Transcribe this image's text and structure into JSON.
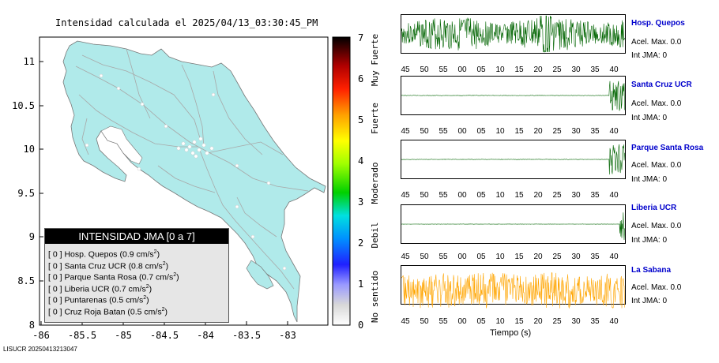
{
  "map": {
    "title": "Intensidad calculada el 2025/04/13_03:30:45_PM",
    "y_ticks": [
      "11",
      "10.5",
      "10",
      "9.5",
      "9",
      "8.5",
      "8"
    ],
    "x_ticks": [
      "-86",
      "-85.5",
      "-85",
      "-84.5",
      "-84",
      "-83.5",
      "-83"
    ],
    "land_color": "#b0eaea"
  },
  "colorbar": {
    "ticks": [
      "0",
      "1",
      "2",
      "3",
      "4",
      "5",
      "6",
      "7"
    ],
    "categories": [
      "No sentido",
      "Debil",
      "Moderado",
      "Fuerte",
      "Muy Fuerte"
    ]
  },
  "legend": {
    "title": "INTENSIDAD JMA [0 a 7]",
    "items": [
      {
        "level": "[ 0 ]",
        "name": "Hosp. Quepos",
        "value": "(0.9 cm/s",
        "unit_sup": "2",
        "close": ")"
      },
      {
        "level": "[ 0 ]",
        "name": "Santa Cruz UCR",
        "value": "(0.8 cm/s",
        "unit_sup": "2",
        "close": ")"
      },
      {
        "level": "[ 0 ]",
        "name": "Parque Santa Rosa",
        "value": "(0.7 cm/s",
        "unit_sup": "2",
        "close": ")"
      },
      {
        "level": "[ 0 ]",
        "name": "Liberia UCR",
        "value": "(0.7 cm/s",
        "unit_sup": "2",
        "close": ")"
      },
      {
        "level": "[ 0 ]",
        "name": "Puntarenas",
        "value": "(0.5 cm/s",
        "unit_sup": "2",
        "close": ")"
      },
      {
        "level": "[ 0 ]",
        "name": "Cruz Roja Batan",
        "value": "(0.5 cm/s",
        "unit_sup": "2",
        "close": ")"
      }
    ]
  },
  "footer": "LISUCR 20250413213047",
  "stations": [
    {
      "name": "Hosp. Quepos",
      "acc": "Acel. Max. 0.0",
      "jma": "Int JMA: 0",
      "color": "#006400",
      "type": "full"
    },
    {
      "name": "Santa Cruz UCR",
      "acc": "Acel. Max. 0.0",
      "jma": "Int JMA: 0",
      "color": "#006400",
      "type": "end"
    },
    {
      "name": "Parque Santa Rosa",
      "acc": "Acel. Max. 0.0",
      "jma": "Int JMA: 0",
      "color": "#006400",
      "type": "end"
    },
    {
      "name": "Liberia UCR",
      "acc": "Acel. Max. 0.0",
      "jma": "Int JMA: 0",
      "color": "#006400",
      "type": "spike"
    },
    {
      "name": "La Sabana",
      "acc": "Acel. Max. 0.0",
      "jma": "Int JMA: 0",
      "color": "#ffa500",
      "type": "noise"
    }
  ],
  "time_ticks": [
    "45",
    "50",
    "55",
    "00",
    "05",
    "10",
    "15",
    "20",
    "25",
    "30",
    "35",
    "40"
  ],
  "time_label": "Tiempo (s)"
}
